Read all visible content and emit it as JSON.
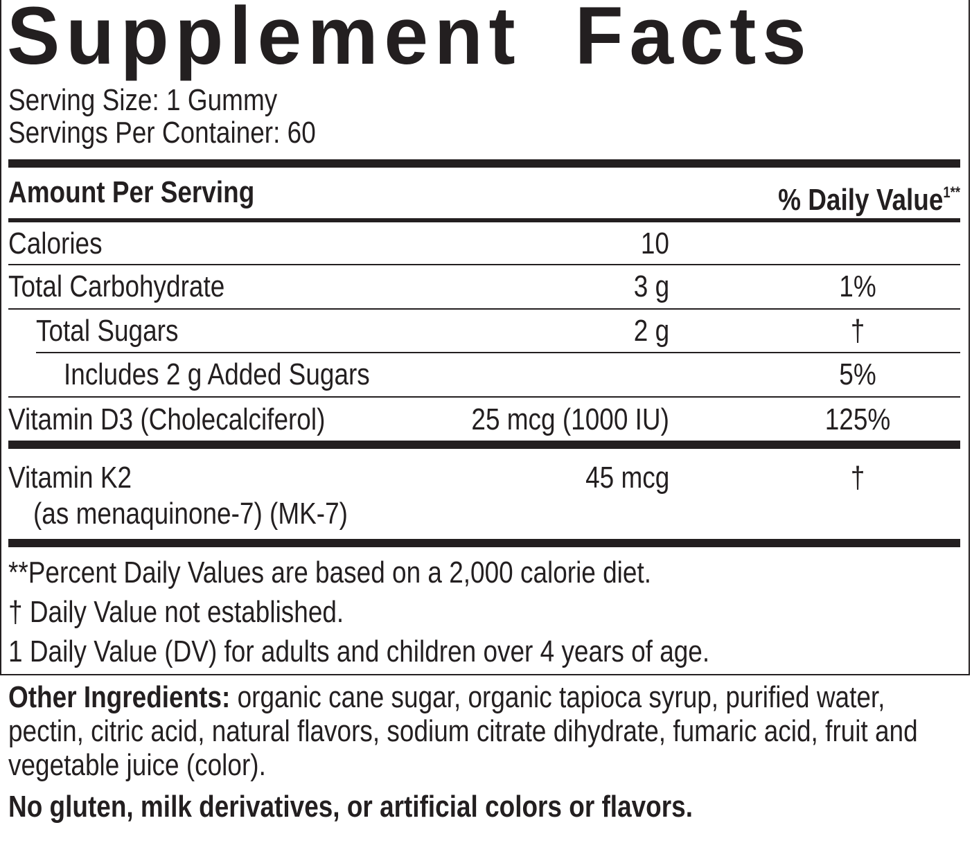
{
  "header": {
    "title": "Supplement Facts",
    "serving_size": "Serving Size: 1 Gummy",
    "servings_per_container": "Servings Per Container: 60"
  },
  "table": {
    "columns": [
      "Amount Per Serving",
      "% Daily Value"
    ],
    "daily_value_mark": "1**",
    "rows": [
      {
        "name": "Calories",
        "amount": "10"
      },
      {
        "name": "Total Carbohydrate",
        "amount": "3 g",
        "daily_value": "1%"
      },
      {
        "name": "Total Sugars",
        "amount": "2 g",
        "daily_value": "†"
      },
      {
        "name": "Includes 2 g Added Sugars",
        "daily_value": "5%"
      },
      {
        "name": "Vitamin D3 (Cholecalciferol)",
        "amount": "25 mcg (1000 IU)",
        "daily_value": "125%"
      },
      {
        "name": "Vitamin K2",
        "detail": "(as menaquinone-7) (MK-7)",
        "amount": "45 mcg",
        "daily_value": "†"
      }
    ]
  },
  "footnotes": [
    "**Percent Daily Values are based on a 2,000 calorie diet.",
    "† Daily Value not established.",
    "1 Daily Value (DV) for adults and children over 4 years of age."
  ],
  "other_ingredients": {
    "label": "Other Ingredients:",
    "text": "organic cane sugar, organic tapioca syrup, purified water, pectin, citric acid, natural flavors, sodium citrate dihydrate, fumaric acid, fruit and vegetable juice (color)."
  },
  "statement": "No gluten, milk derivatives, or artificial colors or flavors."
}
